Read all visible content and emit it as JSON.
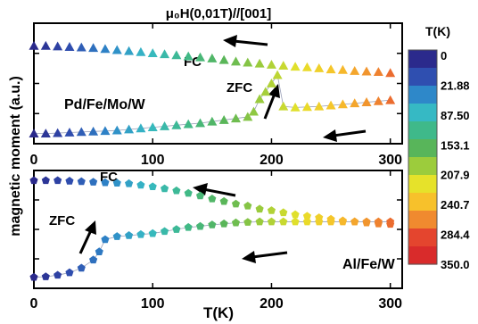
{
  "chart_data": [
    {
      "type": "scatter",
      "title": "μ₀H(0,01T)//[001]",
      "label": "Pd/Fe/Mo/W",
      "xlim": [
        0,
        310
      ],
      "ylim": [
        0,
        1
      ],
      "x_ticks": [
        "0",
        "100",
        "200",
        "300"
      ],
      "y_tick_labels": false,
      "marker": "triangle",
      "series": [
        {
          "name": "FC",
          "points": [
            [
              0,
              0.86
            ],
            [
              10,
              0.86
            ],
            [
              20,
              0.855
            ],
            [
              30,
              0.85
            ],
            [
              40,
              0.845
            ],
            [
              50,
              0.84
            ],
            [
              60,
              0.83
            ],
            [
              70,
              0.82
            ],
            [
              80,
              0.81
            ],
            [
              90,
              0.8
            ],
            [
              100,
              0.79
            ],
            [
              110,
              0.78
            ],
            [
              120,
              0.77
            ],
            [
              130,
              0.76
            ],
            [
              140,
              0.75
            ],
            [
              150,
              0.74
            ],
            [
              160,
              0.725
            ],
            [
              170,
              0.71
            ],
            [
              180,
              0.7
            ],
            [
              190,
              0.69
            ],
            [
              200,
              0.68
            ],
            [
              210,
              0.67
            ],
            [
              220,
              0.66
            ],
            [
              230,
              0.655
            ],
            [
              240,
              0.645
            ],
            [
              250,
              0.635
            ],
            [
              260,
              0.63
            ],
            [
              270,
              0.62
            ],
            [
              280,
              0.615
            ],
            [
              290,
              0.61
            ],
            [
              300,
              0.6
            ]
          ]
        },
        {
          "name": "ZFC",
          "points": [
            [
              0,
              0.02
            ],
            [
              10,
              0.02
            ],
            [
              20,
              0.025
            ],
            [
              30,
              0.03
            ],
            [
              40,
              0.035
            ],
            [
              50,
              0.04
            ],
            [
              60,
              0.045
            ],
            [
              70,
              0.05
            ],
            [
              80,
              0.06
            ],
            [
              90,
              0.07
            ],
            [
              100,
              0.08
            ],
            [
              110,
              0.09
            ],
            [
              120,
              0.1
            ],
            [
              130,
              0.11
            ],
            [
              140,
              0.12
            ],
            [
              150,
              0.135
            ],
            [
              160,
              0.15
            ],
            [
              170,
              0.165
            ],
            [
              180,
              0.18
            ],
            [
              185,
              0.23
            ],
            [
              190,
              0.35
            ],
            [
              195,
              0.42
            ],
            [
              200,
              0.5
            ],
            [
              205,
              0.58
            ],
            [
              210,
              0.28
            ],
            [
              220,
              0.27
            ],
            [
              230,
              0.275
            ],
            [
              240,
              0.28
            ],
            [
              250,
              0.29
            ],
            [
              260,
              0.3
            ],
            [
              270,
              0.31
            ],
            [
              280,
              0.32
            ],
            [
              290,
              0.33
            ],
            [
              300,
              0.34
            ]
          ]
        }
      ],
      "annotations": [
        "FC",
        "ZFC"
      ]
    },
    {
      "type": "scatter",
      "label": "Al/Fe/W",
      "xlim": [
        0,
        310
      ],
      "ylim": [
        0,
        1
      ],
      "xlabel": "T(K)",
      "x_ticks": [
        "0",
        "100",
        "200",
        "300"
      ],
      "y_tick_labels": false,
      "marker": "pentagon",
      "series": [
        {
          "name": "FC",
          "points": [
            [
              0,
              0.98
            ],
            [
              10,
              0.98
            ],
            [
              20,
              0.98
            ],
            [
              30,
              0.975
            ],
            [
              40,
              0.97
            ],
            [
              50,
              0.965
            ],
            [
              60,
              0.96
            ],
            [
              70,
              0.955
            ],
            [
              80,
              0.95
            ],
            [
              90,
              0.935
            ],
            [
              100,
              0.92
            ],
            [
              110,
              0.9
            ],
            [
              120,
              0.88
            ],
            [
              130,
              0.855
            ],
            [
              140,
              0.83
            ],
            [
              150,
              0.8
            ],
            [
              160,
              0.775
            ],
            [
              170,
              0.75
            ],
            [
              180,
              0.73
            ],
            [
              190,
              0.7
            ],
            [
              200,
              0.685
            ],
            [
              210,
              0.665
            ],
            [
              220,
              0.645
            ],
            [
              230,
              0.63
            ],
            [
              240,
              0.615
            ],
            [
              250,
              0.6
            ],
            [
              260,
              0.585
            ],
            [
              270,
              0.575
            ],
            [
              280,
              0.565
            ],
            [
              290,
              0.555
            ],
            [
              300,
              0.55
            ]
          ]
        },
        {
          "name": "ZFC",
          "points": [
            [
              0,
              0.03
            ],
            [
              10,
              0.035
            ],
            [
              20,
              0.05
            ],
            [
              30,
              0.075
            ],
            [
              40,
              0.12
            ],
            [
              50,
              0.2
            ],
            [
              55,
              0.28
            ],
            [
              60,
              0.4
            ],
            [
              70,
              0.43
            ],
            [
              80,
              0.44
            ],
            [
              90,
              0.45
            ],
            [
              100,
              0.46
            ],
            [
              110,
              0.48
            ],
            [
              120,
              0.5
            ],
            [
              130,
              0.52
            ],
            [
              140,
              0.53
            ],
            [
              150,
              0.545
            ],
            [
              160,
              0.555
            ],
            [
              170,
              0.565
            ],
            [
              180,
              0.57
            ],
            [
              190,
              0.575
            ],
            [
              200,
              0.575
            ],
            [
              210,
              0.575
            ],
            [
              220,
              0.575
            ],
            [
              230,
              0.575
            ],
            [
              240,
              0.575
            ],
            [
              250,
              0.575
            ],
            [
              260,
              0.575
            ],
            [
              270,
              0.575
            ],
            [
              280,
              0.575
            ],
            [
              290,
              0.575
            ],
            [
              300,
              0.575
            ]
          ]
        }
      ],
      "annotations": [
        "FC",
        "ZFC"
      ]
    }
  ],
  "shared": {
    "ylabel": "magnetic moment (a.u.)"
  },
  "colorbar": {
    "title": "T(K)",
    "ticks": [
      "0",
      "21.88",
      "87.50",
      "153.1",
      "207.9",
      "240.7",
      "284.4",
      "350.0"
    ],
    "range": [
      0,
      350
    ],
    "colors": [
      "#2b2a8c",
      "#2f4fb0",
      "#2e88c9",
      "#36b9c4",
      "#3fb98a",
      "#58b55a",
      "#9ccc3c",
      "#e6e22a",
      "#f7c12b",
      "#f08a2f",
      "#e4452e",
      "#d92b2b"
    ]
  }
}
